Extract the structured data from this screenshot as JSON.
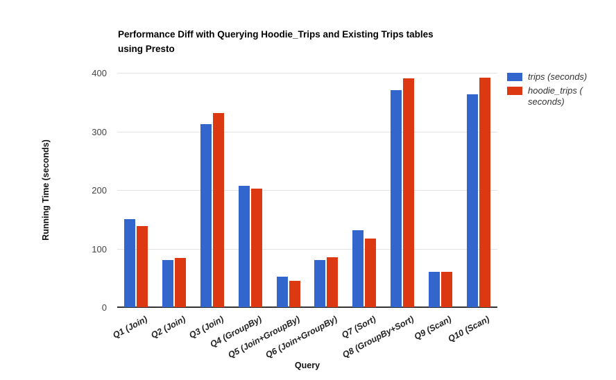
{
  "header": {
    "title_lines": [
      "Performance Diff with Querying Hoodie_Trips and Existing Trips tables",
      "using Presto"
    ]
  },
  "chart_data": {
    "type": "bar",
    "title": "Performance Diff with Querying Hoodie_Trips and Existing Trips tables using Presto",
    "xlabel": "Query",
    "ylabel": "Running Time (seconds)",
    "ylim": [
      0,
      400
    ],
    "yticks": [
      0,
      100,
      200,
      300,
      400
    ],
    "grid": true,
    "legend_position": "right",
    "categories": [
      "Q1 (Join)",
      "Q2 (Join)",
      "Q3 (Join)",
      "Q4 (GroupBy)",
      "Q5 (Join+GroupBy)",
      "Q6 (Join+GroupBy)",
      "Q7 (Sort)",
      "Q8 (GroupBy+Sort)",
      "Q9 (Scan)",
      "Q10 (Scan)"
    ],
    "series": [
      {
        "name": "trips (seconds)",
        "legend_label": "trips (seconds)",
        "color": "#3366cc",
        "values": [
          150,
          81,
          313,
          207,
          52,
          81,
          131,
          371,
          61,
          363
        ]
      },
      {
        "name": "hoodie_trips (seconds)",
        "legend_label": "hoodie_trips (\nseconds)",
        "color": "#dc3912",
        "values": [
          138,
          84,
          332,
          202,
          45,
          85,
          117,
          390,
          60,
          392
        ]
      }
    ],
    "colors": {
      "gridline": "#e2e2e2",
      "axis_line": "#333333",
      "y_tick_label": "#444444",
      "x_tick_label": "#222222"
    }
  }
}
